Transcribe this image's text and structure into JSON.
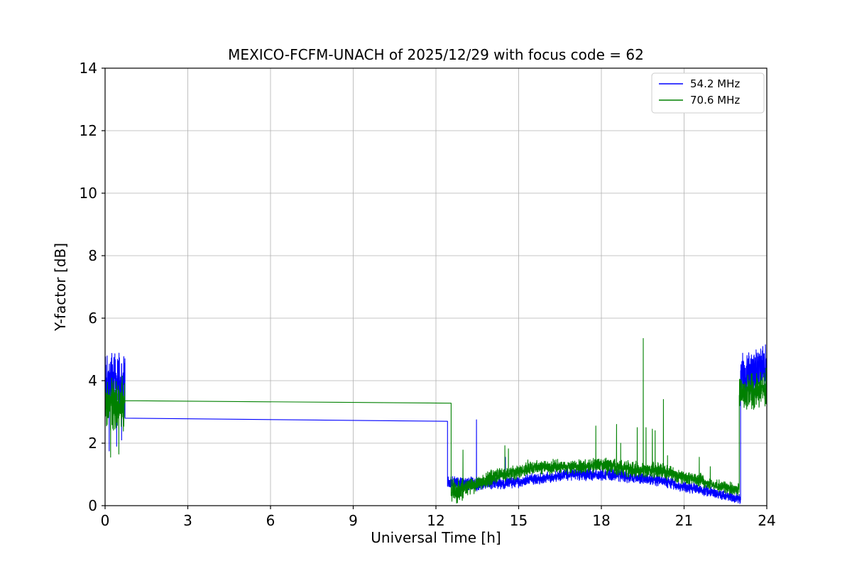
{
  "chart_data": {
    "type": "line",
    "title": "MEXICO-FCFM-UNACH of 2025/12/29 with focus code = 62",
    "xlabel": "Universal Time [h]",
    "ylabel": "Y-factor [dB]",
    "xlim": [
      0,
      24
    ],
    "ylim": [
      0,
      14
    ],
    "xticks": [
      0,
      3,
      6,
      9,
      12,
      15,
      18,
      21,
      24
    ],
    "yticks": [
      0,
      2,
      4,
      6,
      8,
      10,
      12,
      14
    ],
    "grid": true,
    "grid_color": "#b0b0b0",
    "background": "#ffffff",
    "legend_position": "upper right",
    "sampling_step_h": 0.005,
    "series": [
      {
        "name": "54.2 MHz",
        "color": "#0000ff",
        "segments_note": "x0,x1 hours; y0,y1 dB; noise = half-band of random jitter in dB",
        "segments": [
          {
            "x0": 0.0,
            "x1": 0.72,
            "y0": 3.95,
            "y1": 3.95,
            "noise": 1.2
          },
          {
            "x0": 0.72,
            "x1": 12.42,
            "y0": 2.8,
            "y1": 2.7,
            "noise": 0,
            "step": 11.7
          },
          {
            "x0": 12.42,
            "x1": 13.55,
            "y0": 0.75,
            "y1": 0.7,
            "noise": 0.27
          },
          {
            "x0": 13.55,
            "x1": 15.2,
            "y0": 0.68,
            "y1": 0.78,
            "noise": 0.22
          },
          {
            "x0": 15.2,
            "x1": 16.6,
            "y0": 0.8,
            "y1": 0.95,
            "noise": 0.22
          },
          {
            "x0": 16.6,
            "x1": 18.8,
            "y0": 1.0,
            "y1": 1.0,
            "noise": 0.24
          },
          {
            "x0": 18.8,
            "x1": 20.6,
            "y0": 0.95,
            "y1": 0.75,
            "noise": 0.22
          },
          {
            "x0": 20.6,
            "x1": 22.1,
            "y0": 0.68,
            "y1": 0.42,
            "noise": 0.2
          },
          {
            "x0": 22.1,
            "x1": 23.05,
            "y0": 0.38,
            "y1": 0.22,
            "noise": 0.18
          },
          {
            "x0": 23.05,
            "x1": 24.0,
            "y0": 4.15,
            "y1": 4.4,
            "noise": 0.9
          }
        ],
        "spikes": [
          {
            "x": 0.15,
            "y": 1.75
          },
          {
            "x": 0.42,
            "y": 1.9
          },
          {
            "x": 0.6,
            "y": 2.1
          },
          {
            "x": 13.47,
            "y": 2.75
          },
          {
            "x": 14.52,
            "y": 1.55
          },
          {
            "x": 23.95,
            "y": 5.15
          }
        ]
      },
      {
        "name": "70.6 MHz",
        "color": "#008000",
        "segments": [
          {
            "x0": 0.0,
            "x1": 0.72,
            "y0": 3.25,
            "y1": 3.25,
            "noise": 1.0
          },
          {
            "x0": 0.72,
            "x1": 12.55,
            "y0": 3.36,
            "y1": 3.28,
            "noise": 0,
            "step": 11.9
          },
          {
            "x0": 12.55,
            "x1": 13.0,
            "y0": 0.45,
            "y1": 0.5,
            "noise": 0.45
          },
          {
            "x0": 13.0,
            "x1": 14.0,
            "y0": 0.55,
            "y1": 0.85,
            "noise": 0.3
          },
          {
            "x0": 14.0,
            "x1": 15.3,
            "y0": 0.9,
            "y1": 1.15,
            "noise": 0.27
          },
          {
            "x0": 15.3,
            "x1": 18.2,
            "y0": 1.2,
            "y1": 1.3,
            "noise": 0.27
          },
          {
            "x0": 18.2,
            "x1": 20.6,
            "y0": 1.25,
            "y1": 1.05,
            "noise": 0.3
          },
          {
            "x0": 20.6,
            "x1": 21.7,
            "y0": 0.98,
            "y1": 0.8,
            "noise": 0.25
          },
          {
            "x0": 21.7,
            "x1": 23.0,
            "y0": 0.72,
            "y1": 0.5,
            "noise": 0.22
          },
          {
            "x0": 23.0,
            "x1": 24.0,
            "y0": 3.55,
            "y1": 3.75,
            "noise": 0.7
          }
        ],
        "spikes": [
          {
            "x": 0.2,
            "y": 1.55
          },
          {
            "x": 0.5,
            "y": 1.65
          },
          {
            "x": 12.98,
            "y": 1.78
          },
          {
            "x": 14.5,
            "y": 1.92
          },
          {
            "x": 14.63,
            "y": 1.82
          },
          {
            "x": 17.8,
            "y": 2.55
          },
          {
            "x": 18.55,
            "y": 2.6
          },
          {
            "x": 18.7,
            "y": 2.0
          },
          {
            "x": 19.3,
            "y": 2.5
          },
          {
            "x": 19.52,
            "y": 5.35
          },
          {
            "x": 19.62,
            "y": 2.5
          },
          {
            "x": 19.85,
            "y": 2.45
          },
          {
            "x": 19.95,
            "y": 2.4
          },
          {
            "x": 20.25,
            "y": 3.4
          },
          {
            "x": 20.4,
            "y": 1.6
          },
          {
            "x": 21.55,
            "y": 1.55
          },
          {
            "x": 21.95,
            "y": 1.25
          },
          {
            "x": 23.97,
            "y": 4.4
          }
        ]
      }
    ]
  }
}
